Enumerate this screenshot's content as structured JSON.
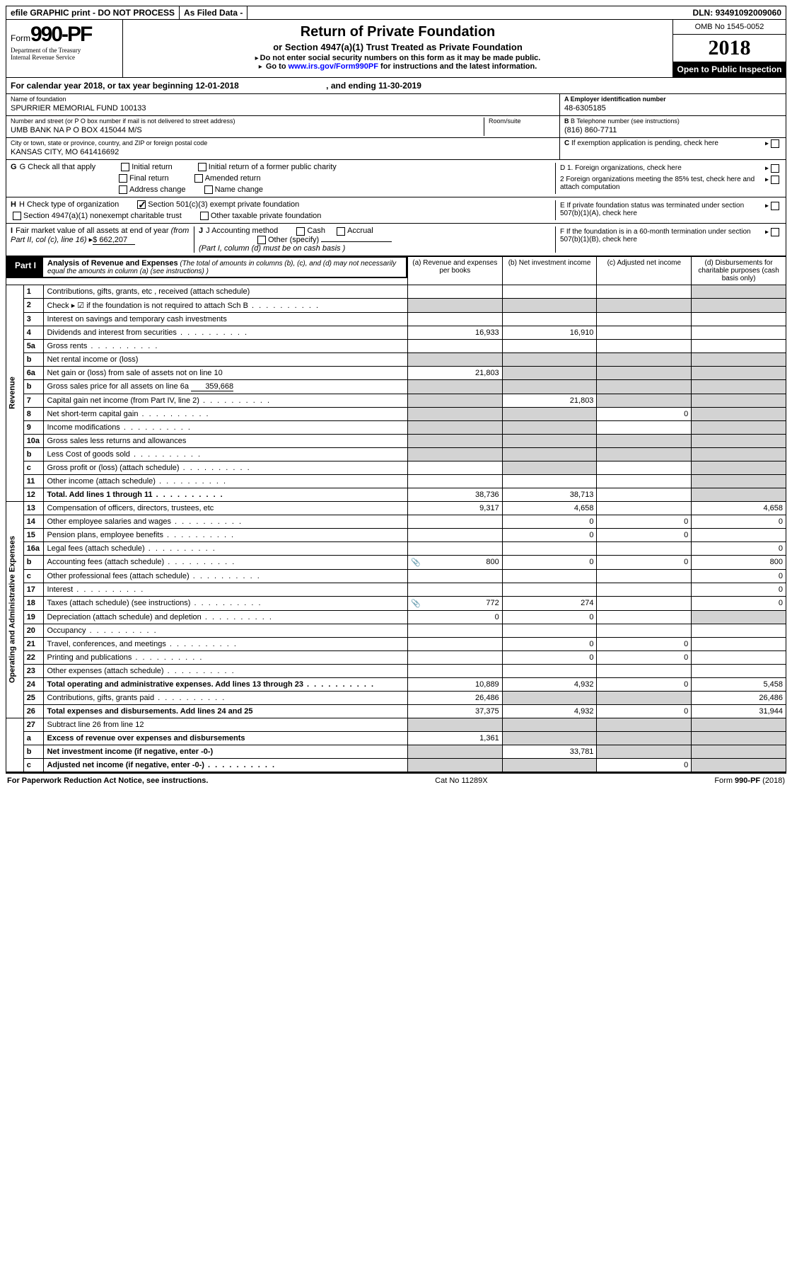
{
  "colors": {
    "black": "#000000",
    "white": "#ffffff",
    "gray_cell": "#d3d3d3",
    "link": "#0000ff"
  },
  "top_bar": {
    "efile": "efile GRAPHIC print - DO NOT PROCESS",
    "as_filed": "As Filed Data -",
    "dln_label": "DLN:",
    "dln": "93491092009060"
  },
  "header": {
    "form_word": "Form",
    "form_number": "990-PF",
    "dept": "Department of the Treasury",
    "irs": "Internal Revenue Service",
    "title": "Return of Private Foundation",
    "subtitle": "or Section 4947(a)(1) Trust Treated as Private Foundation",
    "instr1": "Do not enter social security numbers on this form as it may be made public.",
    "instr2_prefix": "Go to ",
    "instr2_link": "www.irs.gov/Form990PF",
    "instr2_suffix": " for instructions and the latest information.",
    "omb": "OMB No 1545-0052",
    "year": "2018",
    "open_public": "Open to Public Inspection"
  },
  "cal_year": {
    "text": "For calendar year 2018, or tax year beginning 12-01-2018",
    "ending": ", and ending 11-30-2019"
  },
  "foundation": {
    "name_label": "Name of foundation",
    "name": "SPURRIER MEMORIAL FUND 100133",
    "addr_label": "Number and street (or P O  box number if mail is not delivered to street address)",
    "addr": "UMB BANK NA P O BOX 415044 M/S",
    "room_label": "Room/suite",
    "room": "",
    "city_label": "City or town, state or province, country, and ZIP or foreign postal code",
    "city": "KANSAS CITY, MO  641416692"
  },
  "right_info": {
    "a_label": "A Employer identification number",
    "a_val": "48-6305185",
    "b_label": "B Telephone number (see instructions)",
    "b_val": "(816) 860-7711",
    "c_label": "C If exemption application is pending, check here",
    "d1": "D 1. Foreign organizations, check here",
    "d2": "2  Foreign organizations meeting the 85% test, check here and attach computation",
    "e": "E  If private foundation status was terminated under section 507(b)(1)(A), check here",
    "f": "F  If the foundation is in a 60-month termination under section 507(b)(1)(B), check here"
  },
  "g_check": {
    "label": "G Check all that apply",
    "items": [
      "Initial return",
      "Initial return of a former public charity",
      "Final return",
      "Amended return",
      "Address change",
      "Name change"
    ]
  },
  "h_check": {
    "label": "H Check type of organization",
    "opt1": "Section 501(c)(3) exempt private foundation",
    "opt1_checked": true,
    "opt2": "Section 4947(a)(1) nonexempt charitable trust",
    "opt3": "Other taxable private foundation"
  },
  "i_fmv": {
    "label": "I Fair market value of all assets at end of year (from Part II, col  (c), line 16)",
    "val": "$  662,207"
  },
  "j_acct": {
    "label": "J Accounting method",
    "cash": "Cash",
    "accrual": "Accrual",
    "other": "Other (specify)",
    "note": "(Part I, column (d) must be on cash basis )"
  },
  "part1": {
    "label": "Part I",
    "title": "Analysis of Revenue and Expenses",
    "note": "(The total of amounts in columns (b), (c), and (d) may not necessarily equal the amounts in column (a) (see instructions) )",
    "col_a": "(a)   Revenue and expenses per books",
    "col_b": "(b)  Net investment income",
    "col_c": "(c)  Adjusted net income",
    "col_d": "(d)  Disbursements for charitable purposes (cash basis only)"
  },
  "sections": {
    "revenue": "Revenue",
    "expenses": "Operating and Administrative Expenses"
  },
  "lines": [
    {
      "n": "1",
      "d": "Contributions, gifts, grants, etc , received (attach schedule)",
      "a": "",
      "b": "",
      "c": "",
      "dd": "",
      "gray_c": false,
      "gray_d": true
    },
    {
      "n": "2",
      "d": "Check ▸ ☑ if the foundation is not required to attach Sch  B",
      "dots": true,
      "a": "",
      "b": "",
      "c": "",
      "dd": "",
      "gray_all": true
    },
    {
      "n": "3",
      "d": "Interest on savings and temporary cash investments",
      "a": "",
      "b": "",
      "c": "",
      "dd": ""
    },
    {
      "n": "4",
      "d": "Dividends and interest from securities",
      "dots": true,
      "a": "16,933",
      "b": "16,910",
      "c": "",
      "dd": ""
    },
    {
      "n": "5a",
      "d": "Gross rents",
      "dots": true,
      "a": "",
      "b": "",
      "c": "",
      "dd": ""
    },
    {
      "n": "b",
      "d": "Net rental income or (loss)",
      "a": "",
      "b": "",
      "c": "",
      "dd": "",
      "gray_all": true
    },
    {
      "n": "6a",
      "d": "Net gain or (loss) from sale of assets not on line 10",
      "a": "21,803",
      "b": "",
      "c": "",
      "dd": "",
      "gray_b": true,
      "gray_c": true,
      "gray_d": true
    },
    {
      "n": "b",
      "d": "Gross sales price for all assets on line 6a",
      "inline_val": "359,668",
      "a": "",
      "b": "",
      "c": "",
      "dd": "",
      "gray_all": true
    },
    {
      "n": "7",
      "d": "Capital gain net income (from Part IV, line 2)",
      "dots": true,
      "a": "",
      "b": "21,803",
      "c": "",
      "dd": "",
      "gray_a": true,
      "gray_c": true,
      "gray_d": true
    },
    {
      "n": "8",
      "d": "Net short-term capital gain",
      "dots": true,
      "a": "",
      "b": "",
      "c": "0",
      "dd": "",
      "gray_a": true,
      "gray_b": true,
      "gray_d": true
    },
    {
      "n": "9",
      "d": "Income modifications",
      "dots": true,
      "a": "",
      "b": "",
      "c": "",
      "dd": "",
      "gray_a": true,
      "gray_b": true,
      "gray_d": true
    },
    {
      "n": "10a",
      "d": "Gross sales less returns and allowances",
      "a": "",
      "b": "",
      "c": "",
      "dd": "",
      "gray_all": true
    },
    {
      "n": "b",
      "d": "Less  Cost of goods sold",
      "dots": true,
      "a": "",
      "b": "",
      "c": "",
      "dd": "",
      "gray_all": true
    },
    {
      "n": "c",
      "d": "Gross profit or (loss) (attach schedule)",
      "dots": true,
      "a": "",
      "b": "",
      "c": "",
      "dd": "",
      "gray_b": true,
      "gray_d": true
    },
    {
      "n": "11",
      "d": "Other income (attach schedule)",
      "dots": true,
      "a": "",
      "b": "",
      "c": "",
      "dd": "",
      "gray_d": true
    },
    {
      "n": "12",
      "d": "Total. Add lines 1 through 11",
      "dots": true,
      "bold": true,
      "a": "38,736",
      "b": "38,713",
      "c": "",
      "dd": "",
      "gray_d": true
    }
  ],
  "exp_lines": [
    {
      "n": "13",
      "d": "Compensation of officers, directors, trustees, etc",
      "a": "9,317",
      "b": "4,658",
      "c": "",
      "dd": "4,658"
    },
    {
      "n": "14",
      "d": "Other employee salaries and wages",
      "dots": true,
      "a": "",
      "b": "0",
      "c": "0",
      "dd": "0"
    },
    {
      "n": "15",
      "d": "Pension plans, employee benefits",
      "dots": true,
      "a": "",
      "b": "0",
      "c": "0",
      "dd": ""
    },
    {
      "n": "16a",
      "d": "Legal fees (attach schedule)",
      "dots": true,
      "a": "",
      "b": "",
      "c": "",
      "dd": "0"
    },
    {
      "n": "b",
      "d": "Accounting fees (attach schedule)",
      "dots": true,
      "icon": true,
      "a": "800",
      "b": "0",
      "c": "0",
      "dd": "800"
    },
    {
      "n": "c",
      "d": "Other professional fees (attach schedule)",
      "dots": true,
      "a": "",
      "b": "",
      "c": "",
      "dd": "0"
    },
    {
      "n": "17",
      "d": "Interest",
      "dots": true,
      "a": "",
      "b": "",
      "c": "",
      "dd": "0"
    },
    {
      "n": "18",
      "d": "Taxes (attach schedule) (see instructions)",
      "dots": true,
      "icon": true,
      "a": "772",
      "b": "274",
      "c": "",
      "dd": "0"
    },
    {
      "n": "19",
      "d": "Depreciation (attach schedule) and depletion",
      "dots": true,
      "a": "0",
      "b": "0",
      "c": "",
      "dd": "",
      "gray_d": true
    },
    {
      "n": "20",
      "d": "Occupancy",
      "dots": true,
      "a": "",
      "b": "",
      "c": "",
      "dd": ""
    },
    {
      "n": "21",
      "d": "Travel, conferences, and meetings",
      "dots": true,
      "a": "",
      "b": "0",
      "c": "0",
      "dd": ""
    },
    {
      "n": "22",
      "d": "Printing and publications",
      "dots": true,
      "a": "",
      "b": "0",
      "c": "0",
      "dd": ""
    },
    {
      "n": "23",
      "d": "Other expenses (attach schedule)",
      "dots": true,
      "a": "",
      "b": "",
      "c": "",
      "dd": ""
    },
    {
      "n": "24",
      "d": "Total operating and administrative expenses. Add lines 13 through 23",
      "dots": true,
      "bold": true,
      "a": "10,889",
      "b": "4,932",
      "c": "0",
      "dd": "5,458"
    },
    {
      "n": "25",
      "d": "Contributions, gifts, grants paid",
      "dots": true,
      "a": "26,486",
      "b": "",
      "c": "",
      "dd": "26,486",
      "gray_b": true,
      "gray_c": true
    },
    {
      "n": "26",
      "d": "Total expenses and disbursements. Add lines 24 and 25",
      "bold": true,
      "a": "37,375",
      "b": "4,932",
      "c": "0",
      "dd": "31,944"
    }
  ],
  "bottom_lines": [
    {
      "n": "27",
      "d": "Subtract line 26 from line 12",
      "a": "",
      "b": "",
      "c": "",
      "dd": "",
      "gray_all": true
    },
    {
      "n": "a",
      "d": "Excess of revenue over expenses and disbursements",
      "bold": true,
      "a": "1,361",
      "b": "",
      "c": "",
      "dd": "",
      "gray_b": true,
      "gray_c": true,
      "gray_d": true
    },
    {
      "n": "b",
      "d": "Net investment income (if negative, enter -0-)",
      "bold": true,
      "a": "",
      "b": "33,781",
      "c": "",
      "dd": "",
      "gray_a": true,
      "gray_c": true,
      "gray_d": true
    },
    {
      "n": "c",
      "d": "Adjusted net income (if negative, enter -0-)",
      "dots": true,
      "bold": true,
      "a": "",
      "b": "",
      "c": "0",
      "dd": "",
      "gray_a": true,
      "gray_b": true,
      "gray_d": true
    }
  ],
  "footer": {
    "left": "For Paperwork Reduction Act Notice, see instructions.",
    "center": "Cat  No  11289X",
    "right": "Form 990-PF (2018)"
  }
}
